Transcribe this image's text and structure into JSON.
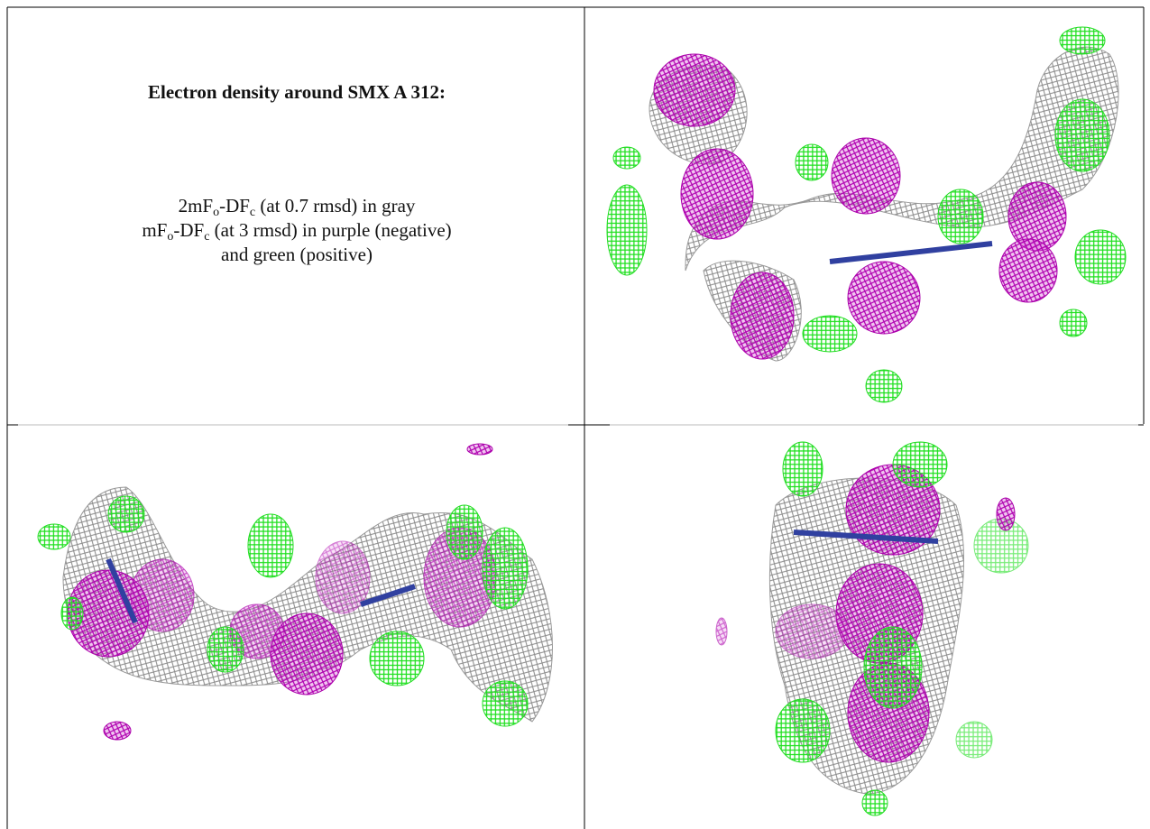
{
  "title": "Electron density around SMX A 312:",
  "legend": {
    "lines": [
      [
        {
          "text": "2mF"
        },
        {
          "text": "o",
          "sub": true
        },
        {
          "text": "-DF"
        },
        {
          "text": "c",
          "sub": true
        },
        {
          "text": " (at 0.7 rmsd) in gray"
        }
      ],
      [
        {
          "text": "mF"
        },
        {
          "text": "o",
          "sub": true
        },
        {
          "text": "-DF"
        },
        {
          "text": "c",
          "sub": true
        },
        {
          "text": " (at 3 rmsd) in purple (negative)"
        }
      ],
      [
        {
          "text": "and green (positive)"
        }
      ]
    ]
  }
}
